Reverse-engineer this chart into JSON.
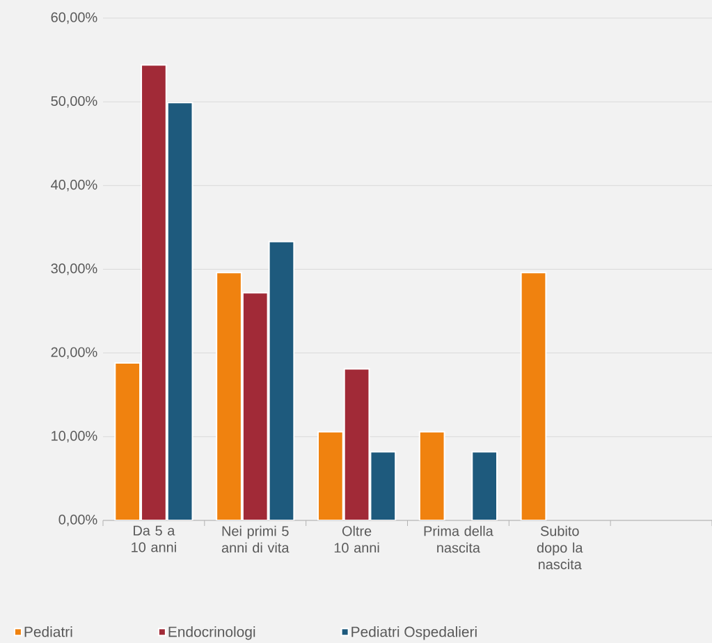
{
  "chart_data": {
    "type": "bar",
    "categories": [
      "Da 5 a 10 anni",
      "Nei primi 5 anni di vita",
      "Oltre 10 anni",
      "Prima della nascita",
      "Subito dopo la nascita",
      null
    ],
    "series": [
      {
        "name": "Pediatri",
        "color": "#f0820f",
        "values": [
          18.8,
          29.6,
          10.6,
          10.6,
          29.6,
          null
        ]
      },
      {
        "name": "Endocrinologi",
        "color": "#a12a37",
        "values": [
          54.4,
          27.2,
          18.1,
          null,
          null,
          null
        ]
      },
      {
        "name": "Pediatri Ospedalieri",
        "color": "#1e5a7d",
        "values": [
          49.9,
          33.3,
          8.2,
          8.2,
          null,
          null
        ]
      }
    ],
    "ylim": [
      0,
      60
    ],
    "yticks": [
      {
        "value": 0,
        "label": "0,00%"
      },
      {
        "value": 10,
        "label": "10,00%"
      },
      {
        "value": 20,
        "label": "20,00%"
      },
      {
        "value": 30,
        "label": "30,00%"
      },
      {
        "value": 40,
        "label": "40,00%"
      },
      {
        "value": 50,
        "label": "50,00%"
      },
      {
        "value": 60,
        "label": "60,00%"
      }
    ],
    "grid": "y",
    "legend": "bottom"
  }
}
